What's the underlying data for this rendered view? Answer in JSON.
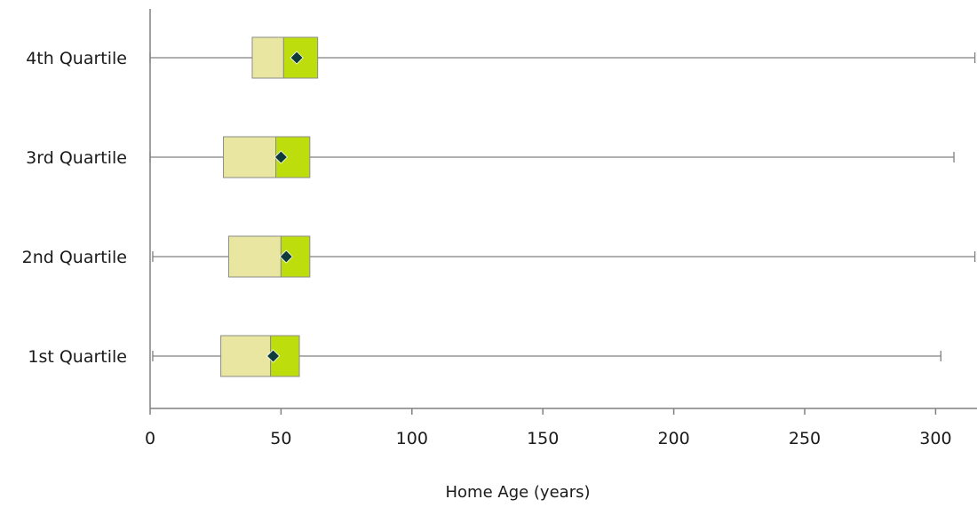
{
  "chart_data": {
    "type": "boxplot",
    "orientation": "horizontal",
    "title": "",
    "xlabel": "Home Age (years)",
    "ylabel": "",
    "xlim": [
      0,
      316
    ],
    "xticks": [
      0,
      50,
      100,
      150,
      200,
      250,
      300
    ],
    "grid": false,
    "legend": "none",
    "colors": {
      "lower_box": "#e8e6a0",
      "upper_box": "#bedd0c",
      "mean_marker": "#0e3a3a",
      "whisker": "#808080",
      "axis": "#808080"
    },
    "categories": [
      "4th Quartile",
      "3rd Quartile",
      "2nd Quartile",
      "1st Quartile"
    ],
    "series": [
      {
        "category": "4th Quartile",
        "min": 0,
        "q1": 39,
        "median": 51,
        "q3": 64,
        "max": 315,
        "mean": 56
      },
      {
        "category": "3rd Quartile",
        "min": 0,
        "q1": 28,
        "median": 48,
        "q3": 61,
        "max": 307,
        "mean": 50
      },
      {
        "category": "2nd Quartile",
        "min": 1,
        "q1": 30,
        "median": 50,
        "q3": 61,
        "max": 315,
        "mean": 52
      },
      {
        "category": "1st Quartile",
        "min": 1,
        "q1": 27,
        "median": 46,
        "q3": 57,
        "max": 302,
        "mean": 47
      }
    ]
  }
}
